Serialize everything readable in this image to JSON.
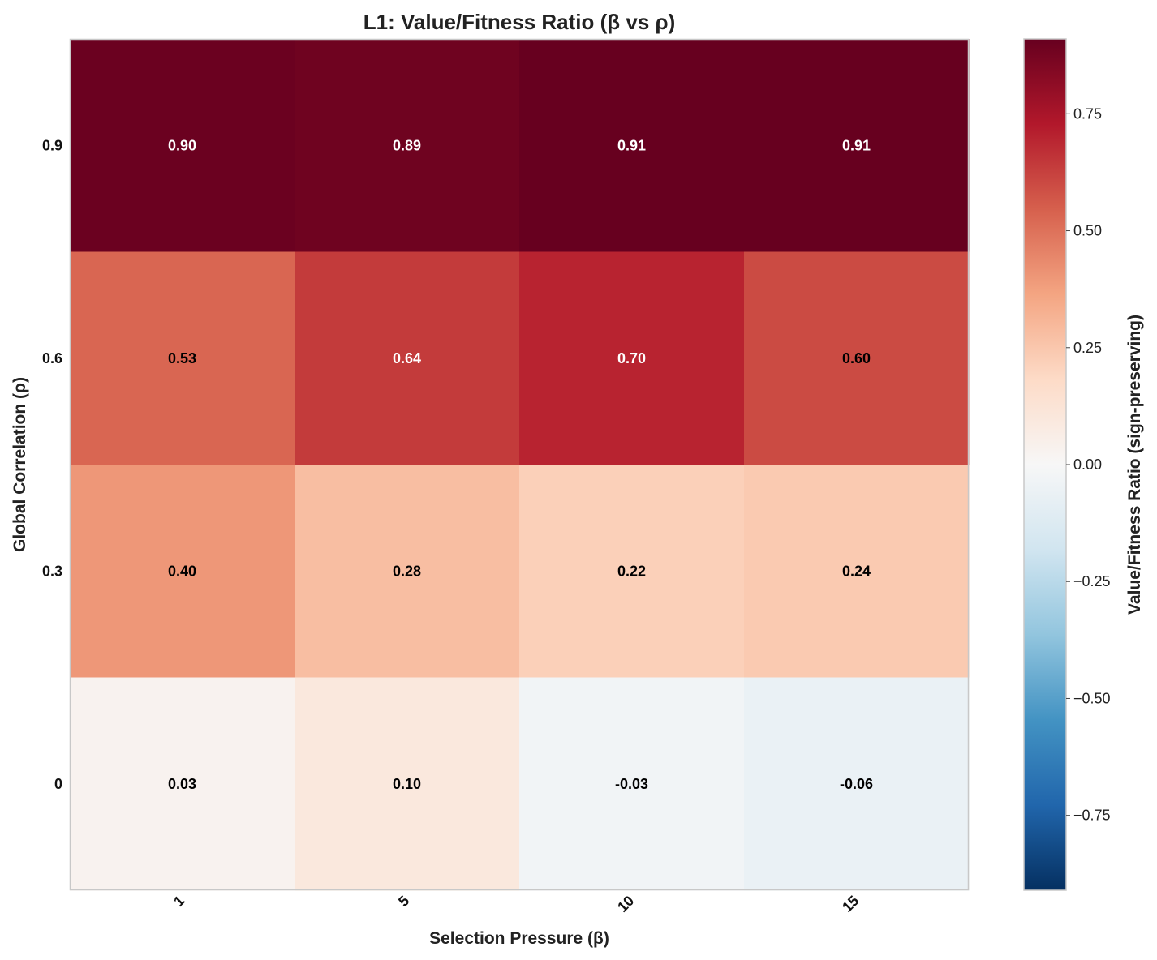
{
  "chart_data": {
    "type": "heatmap",
    "title": "L1: Value/Fitness Ratio (β vs ρ)",
    "xlabel": "Selection Pressure (β)",
    "ylabel": "Global Correlation (ρ)",
    "x_categories": [
      "1",
      "5",
      "10",
      "15"
    ],
    "y_categories": [
      "0.9",
      "0.6",
      "0.3",
      "0"
    ],
    "values": [
      [
        0.9,
        0.89,
        0.91,
        0.91
      ],
      [
        0.53,
        0.64,
        0.7,
        0.6
      ],
      [
        0.4,
        0.28,
        0.22,
        0.24
      ],
      [
        0.03,
        0.1,
        -0.03,
        -0.06
      ]
    ],
    "cell_labels": [
      [
        "0.90",
        "0.89",
        "0.91",
        "0.91"
      ],
      [
        "0.53",
        "0.64",
        "0.70",
        "0.60"
      ],
      [
        "0.40",
        "0.28",
        "0.22",
        "0.24"
      ],
      [
        "0.03",
        "0.10",
        "-0.03",
        "-0.06"
      ]
    ],
    "colormap": "RdBu_r",
    "vmin": -0.91,
    "vmax": 0.91,
    "colorbar": {
      "label": "Value/Fitness Ratio (sign-preserving)",
      "ticks": [
        -0.75,
        -0.5,
        -0.25,
        0.0,
        0.25,
        0.5,
        0.75
      ],
      "tick_labels": [
        "−0.75",
        "−0.50",
        "−0.25",
        "0.00",
        "0.25",
        "0.50",
        "0.75"
      ]
    },
    "grid": false
  }
}
